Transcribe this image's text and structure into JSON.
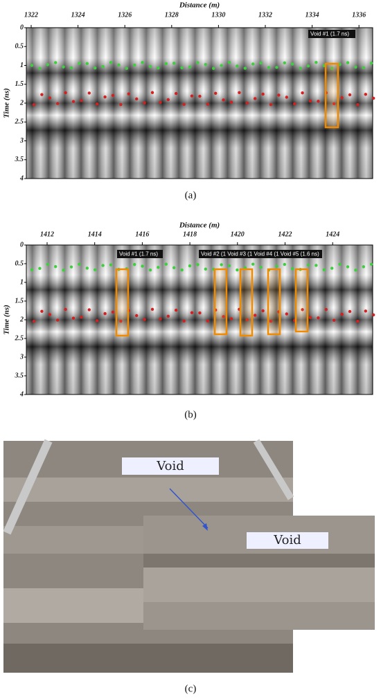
{
  "panels": [
    {
      "x_label": "Distance (m)",
      "y_label": "Time (ns)",
      "xticks": [
        1322,
        1324,
        1326,
        1328,
        1330,
        1332,
        1334,
        1336
      ],
      "yticks": [
        0,
        0.5,
        1,
        1.5,
        2,
        2.5,
        3,
        3.5,
        4
      ],
      "annotations": [
        "Void #1 (1.7 ns)"
      ],
      "caption": "(a)"
    },
    {
      "x_label": "Distance (m)",
      "y_label": "Time (ns)",
      "xticks": [
        1412,
        1414,
        1416,
        1418,
        1420,
        1422,
        1424
      ],
      "yticks": [
        0,
        0.5,
        1,
        1.5,
        2,
        2.5,
        3,
        3.5,
        4
      ],
      "annotations": [
        "Void #1 (1.7 ns)",
        "Void #2 (1 Void #3 (1 Void #4 (1 Void #5 (1.6 ns)"
      ],
      "caption": "(b)"
    }
  ],
  "photo": {
    "labels": [
      "Void",
      "Void"
    ],
    "caption": "(c)"
  }
}
